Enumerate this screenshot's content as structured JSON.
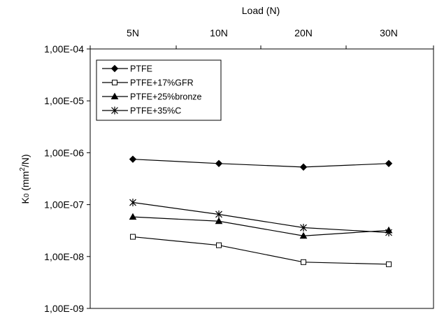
{
  "chart_data": {
    "type": "line",
    "title": "",
    "xlabel": "Load (N)",
    "ylabel_main": "K",
    "ylabel_sub": "0",
    "ylabel_unit_pre": " (mm",
    "ylabel_unit_sup": "2",
    "ylabel_unit_post": "/N)",
    "y_scale": "log",
    "ylim": [
      1e-09,
      0.0001
    ],
    "y_ticks": [
      0.0001,
      1e-05,
      1e-06,
      1e-07,
      1e-08,
      1e-09
    ],
    "y_tick_labels": [
      "1,00E-04",
      "1,00E-05",
      "1,00E-06",
      "1,00E-07",
      "1,00E-08",
      "1,00E-09"
    ],
    "categories": [
      "5N",
      "10N",
      "20N",
      "30N"
    ],
    "x_axis_position": "top",
    "grid": false,
    "legend_position": "top-left",
    "series": [
      {
        "name": "PTFE",
        "marker": "diamond-filled",
        "values": [
          7.5e-07,
          6.2e-07,
          5.3e-07,
          6.2e-07
        ]
      },
      {
        "name": "PTFE+17%GFR",
        "marker": "square-open",
        "values": [
          2.4e-08,
          1.65e-08,
          7.8e-09,
          7.1e-09
        ]
      },
      {
        "name": "PTFE+25%bronze",
        "marker": "triangle-filled",
        "values": [
          5.8e-08,
          4.8e-08,
          2.5e-08,
          3.2e-08
        ]
      },
      {
        "name": "PTFE+35%C",
        "marker": "asterisk",
        "values": [
          1.1e-07,
          6.5e-08,
          3.6e-08,
          2.9e-08
        ]
      }
    ]
  }
}
